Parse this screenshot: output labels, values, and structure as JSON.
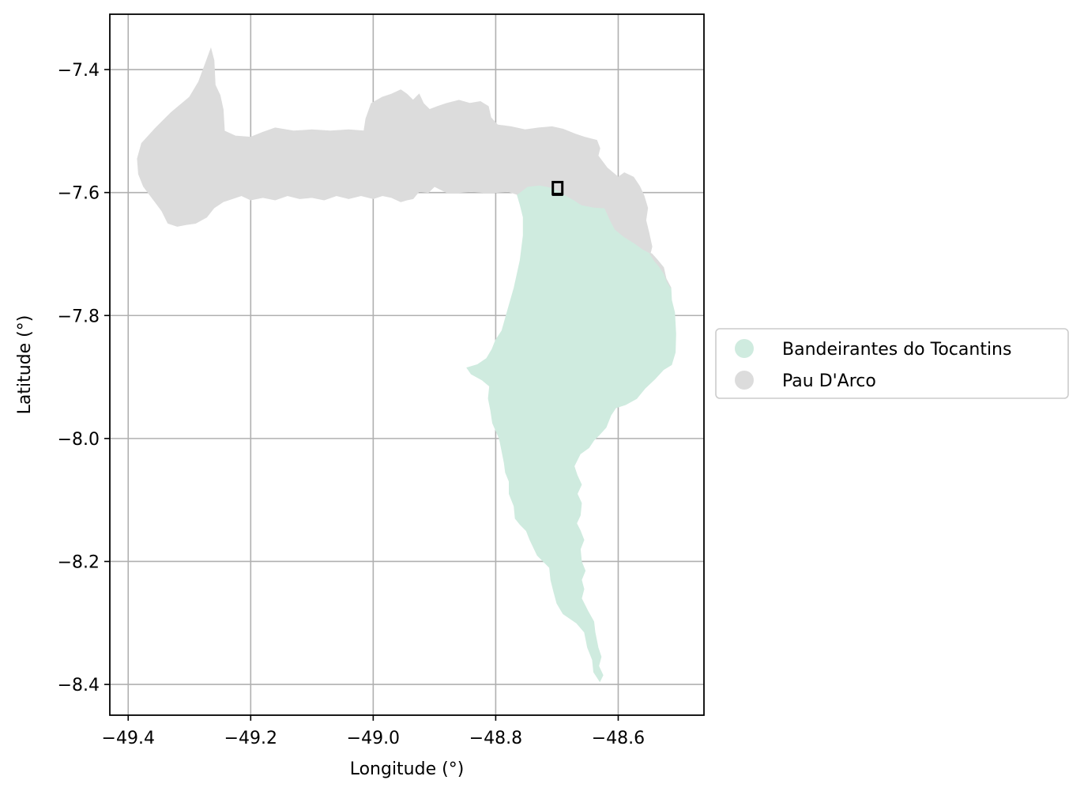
{
  "map": {
    "xlabel": "Longitude (°)",
    "ylabel": "Latitude (°)",
    "xlim": [
      -49.43,
      -48.46
    ],
    "ylim": [
      -8.45,
      -7.31
    ],
    "xticks": [
      -49.4,
      -49.2,
      -49.0,
      -48.8,
      -48.6
    ],
    "yticks": [
      -7.4,
      -7.6,
      -7.8,
      -8.0,
      -8.2,
      -8.4
    ],
    "xtick_labels": [
      "−49.4",
      "−49.2",
      "−49.0",
      "−48.8",
      "−48.6"
    ],
    "ytick_labels": [
      "−7.4",
      "−7.6",
      "−7.8",
      "−8.0",
      "−8.2",
      "−8.4"
    ],
    "grid": true,
    "legend_position": "center-right outside",
    "regions": [
      {
        "name": "Bandeirantes do Tocantins",
        "color": "#cfebdf",
        "outline": [
          [
            -48.765,
            -7.603
          ],
          [
            -48.748,
            -7.59
          ],
          [
            -48.728,
            -7.588
          ],
          [
            -48.712,
            -7.591
          ],
          [
            -48.695,
            -7.598
          ],
          [
            -48.685,
            -7.605
          ],
          [
            -48.672,
            -7.612
          ],
          [
            -48.66,
            -7.62
          ],
          [
            -48.64,
            -7.624
          ],
          [
            -48.622,
            -7.625
          ],
          [
            -48.613,
            -7.645
          ],
          [
            -48.605,
            -7.66
          ],
          [
            -48.59,
            -7.672
          ],
          [
            -48.574,
            -7.682
          ],
          [
            -48.56,
            -7.692
          ],
          [
            -48.545,
            -7.7
          ],
          [
            -48.536,
            -7.71
          ],
          [
            -48.526,
            -7.722
          ],
          [
            -48.522,
            -7.74
          ],
          [
            -48.514,
            -7.755
          ],
          [
            -48.513,
            -7.775
          ],
          [
            -48.508,
            -7.795
          ],
          [
            -48.506,
            -7.83
          ],
          [
            -48.507,
            -7.86
          ],
          [
            -48.513,
            -7.88
          ],
          [
            -48.526,
            -7.888
          ],
          [
            -48.54,
            -7.903
          ],
          [
            -48.556,
            -7.918
          ],
          [
            -48.57,
            -7.935
          ],
          [
            -48.588,
            -7.945
          ],
          [
            -48.604,
            -7.95
          ],
          [
            -48.612,
            -7.962
          ],
          [
            -48.62,
            -7.982
          ],
          [
            -48.632,
            -7.995
          ],
          [
            -48.64,
            -8.003
          ],
          [
            -48.648,
            -8.015
          ],
          [
            -48.662,
            -8.025
          ],
          [
            -48.672,
            -8.045
          ],
          [
            -48.667,
            -8.06
          ],
          [
            -48.66,
            -8.075
          ],
          [
            -48.667,
            -8.09
          ],
          [
            -48.66,
            -8.105
          ],
          [
            -48.662,
            -8.125
          ],
          [
            -48.668,
            -8.138
          ],
          [
            -48.662,
            -8.15
          ],
          [
            -48.656,
            -8.165
          ],
          [
            -48.662,
            -8.18
          ],
          [
            -48.66,
            -8.2
          ],
          [
            -48.654,
            -8.215
          ],
          [
            -48.66,
            -8.23
          ],
          [
            -48.656,
            -8.245
          ],
          [
            -48.66,
            -8.26
          ],
          [
            -48.65,
            -8.28
          ],
          [
            -48.64,
            -8.298
          ],
          [
            -48.638,
            -8.315
          ],
          [
            -48.633,
            -8.34
          ],
          [
            -48.628,
            -8.355
          ],
          [
            -48.632,
            -8.37
          ],
          [
            -48.625,
            -8.385
          ],
          [
            -48.63,
            -8.395
          ],
          [
            -48.64,
            -8.38
          ],
          [
            -48.642,
            -8.36
          ],
          [
            -48.65,
            -8.34
          ],
          [
            -48.655,
            -8.315
          ],
          [
            -48.668,
            -8.3
          ],
          [
            -48.69,
            -8.285
          ],
          [
            -48.7,
            -8.268
          ],
          [
            -48.705,
            -8.25
          ],
          [
            -48.71,
            -8.23
          ],
          [
            -48.712,
            -8.21
          ],
          [
            -48.722,
            -8.2
          ],
          [
            -48.732,
            -8.19
          ],
          [
            -48.744,
            -8.165
          ],
          [
            -48.75,
            -8.15
          ],
          [
            -48.76,
            -8.14
          ],
          [
            -48.768,
            -8.13
          ],
          [
            -48.77,
            -8.11
          ],
          [
            -48.778,
            -8.09
          ],
          [
            -48.778,
            -8.07
          ],
          [
            -48.784,
            -8.055
          ],
          [
            -48.786,
            -8.04
          ],
          [
            -48.79,
            -8.02
          ],
          [
            -48.794,
            -8.0
          ],
          [
            -48.805,
            -7.975
          ],
          [
            -48.808,
            -7.955
          ],
          [
            -48.812,
            -7.935
          ],
          [
            -48.81,
            -7.915
          ],
          [
            -48.822,
            -7.905
          ],
          [
            -48.84,
            -7.895
          ],
          [
            -48.847,
            -7.885
          ],
          [
            -48.83,
            -7.88
          ],
          [
            -48.815,
            -7.87
          ],
          [
            -48.806,
            -7.855
          ],
          [
            -48.8,
            -7.84
          ],
          [
            -48.79,
            -7.825
          ],
          [
            -48.78,
            -7.79
          ],
          [
            -48.77,
            -7.755
          ],
          [
            -48.76,
            -7.71
          ],
          [
            -48.755,
            -7.67
          ],
          [
            -48.755,
            -7.64
          ],
          [
            -48.76,
            -7.62
          ]
        ]
      },
      {
        "name": "Pau D'Arco",
        "color": "#dcdcdc",
        "outline": [
          [
            -49.355,
            -7.495
          ],
          [
            -49.33,
            -7.47
          ],
          [
            -49.3,
            -7.445
          ],
          [
            -49.285,
            -7.42
          ],
          [
            -49.272,
            -7.385
          ],
          [
            -49.265,
            -7.366
          ],
          [
            -49.26,
            -7.385
          ],
          [
            -49.258,
            -7.425
          ],
          [
            -49.25,
            -7.442
          ],
          [
            -49.245,
            -7.465
          ],
          [
            -49.243,
            -7.5
          ],
          [
            -49.225,
            -7.508
          ],
          [
            -49.2,
            -7.51
          ],
          [
            -49.18,
            -7.502
          ],
          [
            -49.16,
            -7.495
          ],
          [
            -49.13,
            -7.5
          ],
          [
            -49.1,
            -7.498
          ],
          [
            -49.07,
            -7.5
          ],
          [
            -49.04,
            -7.498
          ],
          [
            -49.015,
            -7.5
          ],
          [
            -49.012,
            -7.48
          ],
          [
            -49.003,
            -7.455
          ],
          [
            -48.985,
            -7.445
          ],
          [
            -48.97,
            -7.44
          ],
          [
            -48.955,
            -7.433
          ],
          [
            -48.945,
            -7.44
          ],
          [
            -48.935,
            -7.45
          ],
          [
            -48.925,
            -7.44
          ],
          [
            -48.918,
            -7.455
          ],
          [
            -48.908,
            -7.465
          ],
          [
            -48.895,
            -7.46
          ],
          [
            -48.88,
            -7.455
          ],
          [
            -48.86,
            -7.45
          ],
          [
            -48.842,
            -7.455
          ],
          [
            -48.825,
            -7.452
          ],
          [
            -48.812,
            -7.46
          ],
          [
            -48.808,
            -7.478
          ],
          [
            -48.797,
            -7.49
          ],
          [
            -48.775,
            -7.493
          ],
          [
            -48.752,
            -7.498
          ],
          [
            -48.73,
            -7.495
          ],
          [
            -48.708,
            -7.493
          ],
          [
            -48.69,
            -7.497
          ],
          [
            -48.67,
            -7.505
          ],
          [
            -48.655,
            -7.51
          ],
          [
            -48.635,
            -7.515
          ],
          [
            -48.63,
            -7.528
          ],
          [
            -48.633,
            -7.54
          ],
          [
            -48.618,
            -7.56
          ],
          [
            -48.6,
            -7.575
          ],
          [
            -48.59,
            -7.568
          ],
          [
            -48.575,
            -7.575
          ],
          [
            -48.565,
            -7.59
          ],
          [
            -48.558,
            -7.605
          ],
          [
            -48.552,
            -7.625
          ],
          [
            -48.555,
            -7.645
          ],
          [
            -48.55,
            -7.665
          ],
          [
            -48.545,
            -7.688
          ],
          [
            -48.548,
            -7.7
          ],
          [
            -48.54,
            -7.712
          ],
          [
            -48.533,
            -7.72
          ],
          [
            -48.525,
            -7.732
          ],
          [
            -48.52,
            -7.745
          ],
          [
            -48.514,
            -7.755
          ],
          [
            -48.522,
            -7.74
          ],
          [
            -48.526,
            -7.722
          ],
          [
            -48.536,
            -7.71
          ],
          [
            -48.545,
            -7.7
          ],
          [
            -48.56,
            -7.692
          ],
          [
            -48.574,
            -7.682
          ],
          [
            -48.59,
            -7.672
          ],
          [
            -48.605,
            -7.66
          ],
          [
            -48.613,
            -7.645
          ],
          [
            -48.622,
            -7.625
          ],
          [
            -48.64,
            -7.624
          ],
          [
            -48.66,
            -7.62
          ],
          [
            -48.672,
            -7.612
          ],
          [
            -48.685,
            -7.605
          ],
          [
            -48.695,
            -7.598
          ],
          [
            -48.712,
            -7.591
          ],
          [
            -48.728,
            -7.588
          ],
          [
            -48.748,
            -7.59
          ],
          [
            -48.765,
            -7.603
          ],
          [
            -48.78,
            -7.598
          ],
          [
            -48.8,
            -7.6
          ],
          [
            -48.82,
            -7.6
          ],
          [
            -48.84,
            -7.598
          ],
          [
            -48.86,
            -7.6
          ],
          [
            -48.88,
            -7.6
          ],
          [
            -48.9,
            -7.59
          ],
          [
            -48.91,
            -7.6
          ],
          [
            -48.925,
            -7.598
          ],
          [
            -48.935,
            -7.61
          ],
          [
            -48.945,
            -7.612
          ],
          [
            -48.955,
            -7.615
          ],
          [
            -48.97,
            -7.608
          ],
          [
            -48.985,
            -7.605
          ],
          [
            -49.0,
            -7.61
          ],
          [
            -49.02,
            -7.605
          ],
          [
            -49.04,
            -7.61
          ],
          [
            -49.06,
            -7.605
          ],
          [
            -49.08,
            -7.612
          ],
          [
            -49.1,
            -7.608
          ],
          [
            -49.12,
            -7.61
          ],
          [
            -49.14,
            -7.605
          ],
          [
            -49.16,
            -7.612
          ],
          [
            -49.18,
            -7.608
          ],
          [
            -49.2,
            -7.612
          ],
          [
            -49.215,
            -7.605
          ],
          [
            -49.23,
            -7.61
          ],
          [
            -49.245,
            -7.615
          ],
          [
            -49.26,
            -7.625
          ],
          [
            -49.272,
            -7.64
          ],
          [
            -49.29,
            -7.65
          ],
          [
            -49.305,
            -7.652
          ],
          [
            -49.32,
            -7.655
          ],
          [
            -49.335,
            -7.65
          ],
          [
            -49.345,
            -7.63
          ],
          [
            -49.36,
            -7.61
          ],
          [
            -49.375,
            -7.59
          ],
          [
            -49.383,
            -7.57
          ],
          [
            -49.385,
            -7.545
          ],
          [
            -49.378,
            -7.52
          ]
        ]
      }
    ],
    "marker": {
      "lon": -48.699,
      "lat": -7.592
    }
  }
}
